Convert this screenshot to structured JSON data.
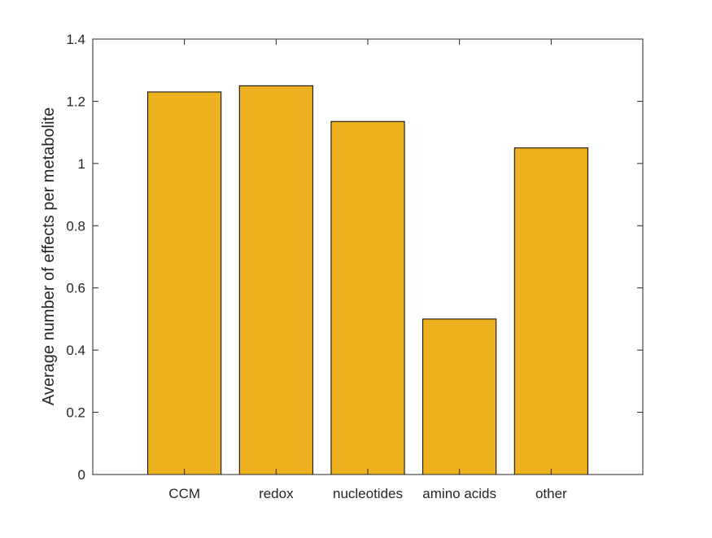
{
  "chart_data": {
    "type": "bar",
    "title": "",
    "xlabel": "",
    "ylabel": "Average number of effects per metabolite",
    "categories": [
      "CCM",
      "redox",
      "nucleotides",
      "amino acids",
      "other"
    ],
    "values": [
      1.23,
      1.25,
      1.135,
      0.5,
      1.05
    ],
    "ylim": [
      0,
      1.4
    ],
    "yticks": [
      0,
      0.2,
      0.4,
      0.6,
      0.8,
      1,
      1.2,
      1.4
    ],
    "ytick_labels": [
      "0",
      "0.2",
      "0.4",
      "0.6",
      "0.8",
      "1",
      "1.2",
      "1.4"
    ],
    "xlim": [
      0,
      6
    ],
    "grid": false,
    "legend": "none",
    "colors": {
      "bar_fill": "#EDB120",
      "bar_edge": "#000000",
      "axis": "#262626",
      "background": "#ffffff"
    }
  }
}
